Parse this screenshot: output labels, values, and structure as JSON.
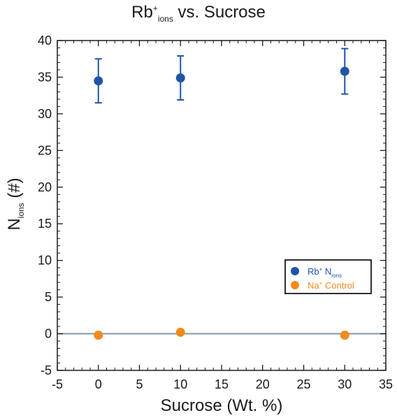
{
  "chart_data": {
    "type": "scatter",
    "title": {
      "main": "Rb",
      "sup": "+",
      "sub": "ions",
      "rest": " vs. Sucrose"
    },
    "xlabel": "Sucrose (Wt. %)",
    "ylabel": {
      "main": "N",
      "sub": "ions",
      "rest": " (#)"
    },
    "xlim": [
      -5,
      35
    ],
    "ylim": [
      -5,
      40
    ],
    "xticks": [
      "-5",
      "0",
      "5",
      "10",
      "15",
      "20",
      "25",
      "30",
      "35"
    ],
    "yticks": [
      "-5",
      "0",
      "5",
      "10",
      "15",
      "20",
      "25",
      "30",
      "35",
      "40"
    ],
    "grid": false,
    "legend_position": "right",
    "series": [
      {
        "name": "Rb+ Nions",
        "legend": {
          "main": "Rb",
          "sup": "+",
          "mid": " N",
          "sub": "ions"
        },
        "color": "#1f55a6",
        "x": [
          0,
          10,
          30
        ],
        "y": [
          34.5,
          34.9,
          35.8
        ],
        "yerr": [
          3.0,
          3.0,
          3.1
        ]
      },
      {
        "name": "Na+ Control",
        "legend": {
          "main": "Na",
          "sup": "+",
          "mid": " Control",
          "sub": ""
        },
        "color": "#f28a1c",
        "x": [
          0,
          10,
          30
        ],
        "y": [
          -0.2,
          0.2,
          -0.2
        ],
        "yerr": [
          0,
          0,
          0
        ]
      }
    ],
    "reference_line": {
      "y": 0,
      "color": "#7f9aa5"
    }
  }
}
